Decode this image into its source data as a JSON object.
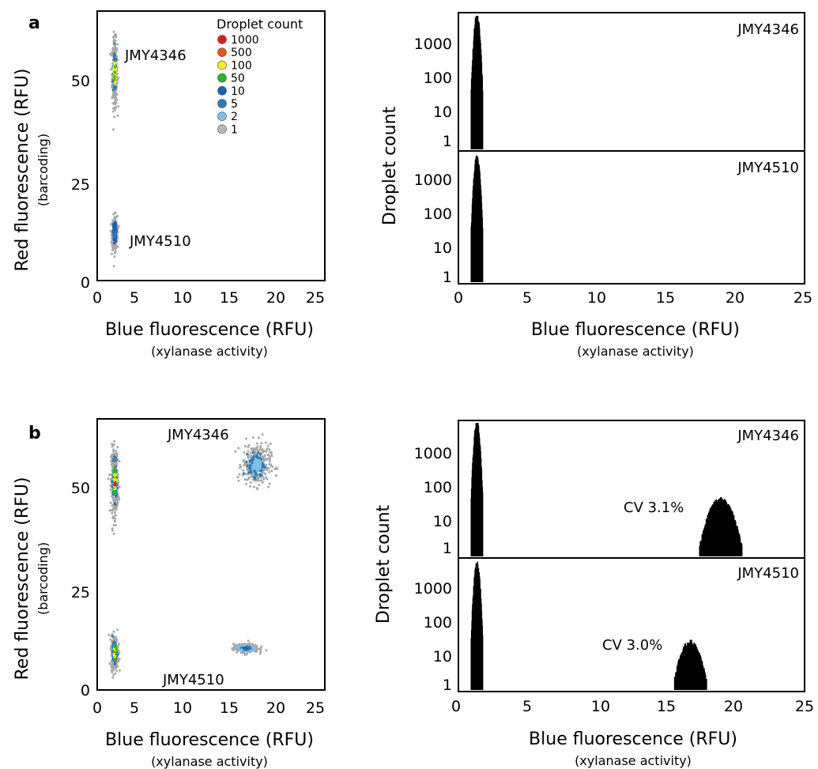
{
  "panels": [
    {
      "label": "a",
      "scatter": {
        "x_ticks": [
          "0",
          "5",
          "10",
          "15",
          "20",
          "25"
        ],
        "y_ticks": [
          "0",
          "25",
          "50"
        ],
        "xlabel": "Blue fluorescence (RFU)",
        "xlabel_sub": "(xylanase activity)",
        "ylabel": "Red fluorescence (RFU)",
        "ylabel_sub": "(barcoding)",
        "annotations": [
          "JMY4346",
          "JMY4510"
        ]
      },
      "histogram": {
        "x_ticks": [
          "0",
          "5",
          "10",
          "15",
          "20",
          "25"
        ],
        "y_ticks": [
          "1000",
          "100",
          "10",
          "1"
        ],
        "xlabel": "Blue fluorescence (RFU)",
        "xlabel_sub": "(xylanase activity)",
        "ylabel": "Droplet count",
        "subplots": [
          {
            "strain": "JMY4346",
            "cv": ""
          },
          {
            "strain": "JMY4510",
            "cv": ""
          }
        ]
      }
    },
    {
      "label": "b",
      "scatter": {
        "x_ticks": [
          "0",
          "5",
          "10",
          "15",
          "20",
          "25"
        ],
        "y_ticks": [
          "0",
          "25",
          "50"
        ],
        "xlabel": "Blue fluorescence (RFU)",
        "xlabel_sub": "(xylanase activity)",
        "ylabel": "Red fluorescence (RFU)",
        "ylabel_sub": "(barcoding)",
        "annotations": [
          "JMY4346",
          "JMY4510"
        ]
      },
      "histogram": {
        "x_ticks": [
          "0",
          "5",
          "10",
          "15",
          "20",
          "25"
        ],
        "y_ticks": [
          "1000",
          "100",
          "10",
          "1"
        ],
        "xlabel": "Blue fluorescence (RFU)",
        "xlabel_sub": "(xylanase activity)",
        "ylabel": "Droplet count",
        "subplots": [
          {
            "strain": "JMY4346",
            "cv": "CV 3.1%"
          },
          {
            "strain": "JMY4510",
            "cv": "CV 3.0%"
          }
        ]
      }
    }
  ],
  "legend": {
    "title": "Droplet count",
    "items": [
      {
        "label": "1000",
        "color": "#d62020"
      },
      {
        "label": "500",
        "color": "#e8561a"
      },
      {
        "label": "100",
        "color": "#f2ef1c"
      },
      {
        "label": "50",
        "color": "#2db42a"
      },
      {
        "label": "10",
        "color": "#1a5fb4"
      },
      {
        "label": "5",
        "color": "#2a7ab8"
      },
      {
        "label": "2",
        "color": "#7ec0ea"
      },
      {
        "label": "1",
        "color": "#b8b8b8"
      }
    ]
  },
  "chart_data": [
    {
      "type": "scatter",
      "panel": "a",
      "xlim": [
        0,
        26
      ],
      "ylim": [
        0,
        65
      ],
      "clusters": [
        {
          "name": "JMY4346",
          "center": [
            2.0,
            50
          ],
          "spread": [
            0.15,
            4.0
          ],
          "color_peak": "#2db42a"
        },
        {
          "name": "JMY4510",
          "center": [
            2.0,
            11.5
          ],
          "spread": [
            0.15,
            2.0
          ],
          "color_peak": "#2a7ab8"
        }
      ]
    },
    {
      "type": "bar",
      "panel": "a",
      "scale": "log",
      "xlim": [
        0,
        25
      ],
      "series": [
        {
          "name": "JMY4346",
          "peaks": [
            {
              "center": 1.3,
              "sigma": 0.13,
              "height": 5000
            }
          ]
        },
        {
          "name": "JMY4510",
          "peaks": [
            {
              "center": 1.3,
              "sigma": 0.13,
              "height": 4000
            }
          ]
        }
      ]
    },
    {
      "type": "scatter",
      "panel": "b",
      "xlim": [
        0,
        26
      ],
      "ylim": [
        0,
        65
      ],
      "clusters": [
        {
          "name": "JMY4346 inactive",
          "center": [
            2.0,
            50
          ],
          "spread": [
            0.2,
            4.0
          ],
          "color_peak": "#d62020"
        },
        {
          "name": "JMY4346 active",
          "center": [
            18.2,
            54
          ],
          "spread": [
            0.8,
            2.5
          ],
          "color_peak": "#7ec0ea"
        },
        {
          "name": "JMY4510 inactive",
          "center": [
            2.0,
            9
          ],
          "spread": [
            0.2,
            2.0
          ],
          "color_peak": "#d62020"
        },
        {
          "name": "JMY4510 active",
          "center": [
            17.0,
            10
          ],
          "spread": [
            0.7,
            0.5
          ],
          "color_peak": "#1a5fb4"
        }
      ]
    },
    {
      "type": "bar",
      "panel": "b",
      "scale": "log",
      "xlim": [
        0,
        25
      ],
      "series": [
        {
          "name": "JMY4346",
          "peaks": [
            {
              "center": 1.3,
              "sigma": 0.13,
              "height": 5000
            },
            {
              "center": 18.9,
              "sigma": 0.6,
              "height": 25
            }
          ]
        },
        {
          "name": "JMY4510",
          "peaks": [
            {
              "center": 1.3,
              "sigma": 0.13,
              "height": 4000
            },
            {
              "center": 16.7,
              "sigma": 0.5,
              "height": 15
            }
          ]
        }
      ]
    }
  ]
}
